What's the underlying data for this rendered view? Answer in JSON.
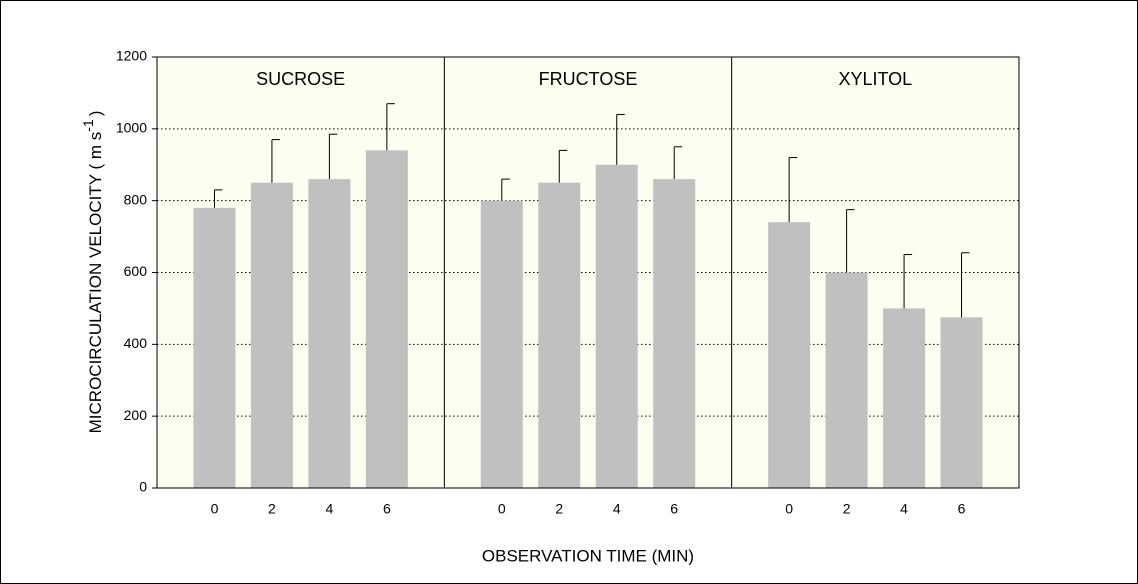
{
  "chart_data": {
    "type": "bar",
    "y_label": "MICROCIRCULATION VELOCITY ( m s",
    "y_label_sup": "-1",
    "y_label_end": ")",
    "x_label": "OBSERVATION TIME (MIN)",
    "categories": [
      "0",
      "2",
      "4",
      "6"
    ],
    "color": "#c0c0c0",
    "error_color": "#000000",
    "panel_color": "#fdfdf0",
    "ylim": [
      0,
      1200
    ],
    "yticks": [
      0,
      200,
      400,
      600,
      800,
      1000,
      1200
    ],
    "grid": true,
    "panels": [
      {
        "title": "SUCROSE",
        "values": [
          780,
          850,
          860,
          940
        ],
        "errors": [
          50,
          120,
          125,
          130
        ]
      },
      {
        "title": "FRUCTOSE",
        "values": [
          800,
          850,
          900,
          860
        ],
        "errors": [
          60,
          90,
          140,
          90
        ]
      },
      {
        "title": "XYLITOL",
        "values": [
          740,
          600,
          500,
          475
        ],
        "errors": [
          180,
          175,
          150,
          180
        ]
      }
    ]
  }
}
